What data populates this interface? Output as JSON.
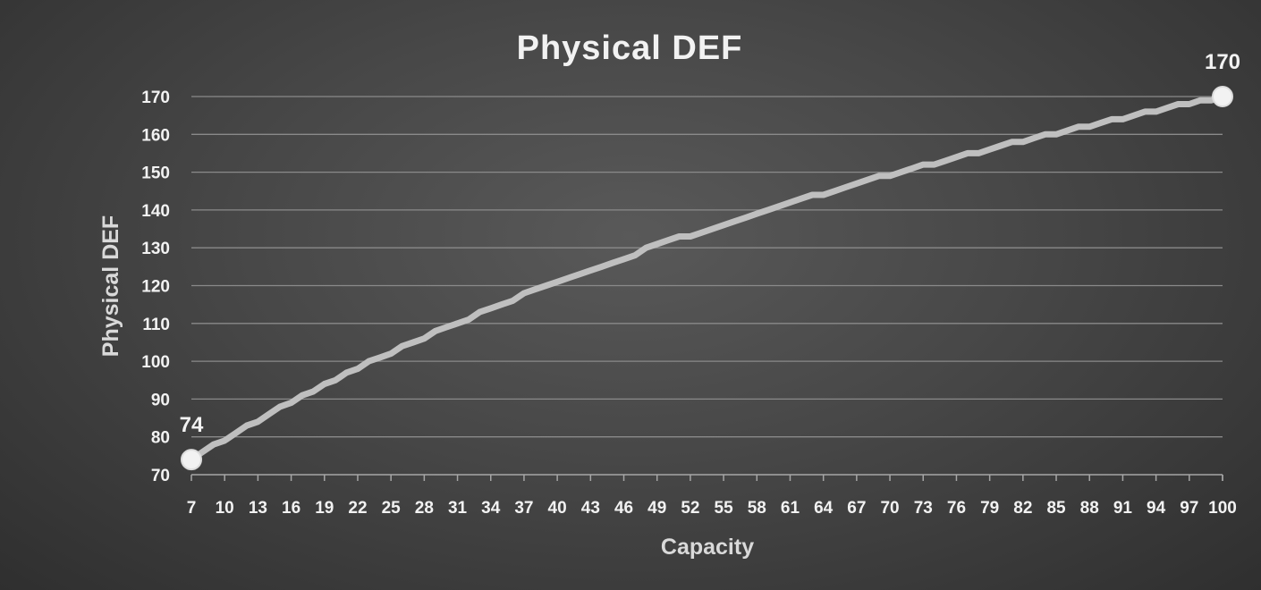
{
  "chart_data": {
    "type": "line",
    "title": "Physical DEF",
    "xlabel": "Capacity",
    "ylabel": "Physical DEF",
    "ylim": [
      70,
      170
    ],
    "yticks": [
      70,
      80,
      90,
      100,
      110,
      120,
      130,
      140,
      150,
      160,
      170
    ],
    "xlim": [
      7,
      100
    ],
    "xticks": [
      7,
      10,
      13,
      16,
      19,
      22,
      25,
      28,
      31,
      34,
      37,
      40,
      43,
      46,
      49,
      52,
      55,
      58,
      61,
      64,
      67,
      70,
      73,
      76,
      79,
      82,
      85,
      88,
      91,
      94,
      97,
      100
    ],
    "grid": true,
    "legend": "none",
    "series": [
      {
        "color": "#bfbfbf",
        "points": [
          [
            7,
            74
          ],
          [
            8,
            76
          ],
          [
            9,
            78
          ],
          [
            10,
            79
          ],
          [
            11,
            81
          ],
          [
            12,
            83
          ],
          [
            13,
            84
          ],
          [
            14,
            86
          ],
          [
            15,
            88
          ],
          [
            16,
            89
          ],
          [
            17,
            91
          ],
          [
            18,
            92
          ],
          [
            19,
            94
          ],
          [
            20,
            95
          ],
          [
            21,
            97
          ],
          [
            22,
            98
          ],
          [
            23,
            100
          ],
          [
            24,
            101
          ],
          [
            25,
            102
          ],
          [
            26,
            104
          ],
          [
            27,
            105
          ],
          [
            28,
            106
          ],
          [
            29,
            108
          ],
          [
            30,
            109
          ],
          [
            31,
            110
          ],
          [
            32,
            111
          ],
          [
            33,
            113
          ],
          [
            34,
            114
          ],
          [
            35,
            115
          ],
          [
            36,
            116
          ],
          [
            37,
            118
          ],
          [
            38,
            119
          ],
          [
            39,
            120
          ],
          [
            40,
            121
          ],
          [
            41,
            122
          ],
          [
            42,
            123
          ],
          [
            43,
            124
          ],
          [
            44,
            125
          ],
          [
            45,
            126
          ],
          [
            46,
            127
          ],
          [
            47,
            128
          ],
          [
            48,
            130
          ],
          [
            49,
            131
          ],
          [
            50,
            132
          ],
          [
            51,
            133
          ],
          [
            52,
            133
          ],
          [
            53,
            134
          ],
          [
            54,
            135
          ],
          [
            55,
            136
          ],
          [
            56,
            137
          ],
          [
            57,
            138
          ],
          [
            58,
            139
          ],
          [
            59,
            140
          ],
          [
            60,
            141
          ],
          [
            61,
            142
          ],
          [
            62,
            143
          ],
          [
            63,
            144
          ],
          [
            64,
            144
          ],
          [
            65,
            145
          ],
          [
            66,
            146
          ],
          [
            67,
            147
          ],
          [
            68,
            148
          ],
          [
            69,
            149
          ],
          [
            70,
            149
          ],
          [
            71,
            150
          ],
          [
            72,
            151
          ],
          [
            73,
            152
          ],
          [
            74,
            152
          ],
          [
            75,
            153
          ],
          [
            76,
            154
          ],
          [
            77,
            155
          ],
          [
            78,
            155
          ],
          [
            79,
            156
          ],
          [
            80,
            157
          ],
          [
            81,
            158
          ],
          [
            82,
            158
          ],
          [
            83,
            159
          ],
          [
            84,
            160
          ],
          [
            85,
            160
          ],
          [
            86,
            161
          ],
          [
            87,
            162
          ],
          [
            88,
            162
          ],
          [
            89,
            163
          ],
          [
            90,
            164
          ],
          [
            91,
            164
          ],
          [
            92,
            165
          ],
          [
            93,
            166
          ],
          [
            94,
            166
          ],
          [
            95,
            167
          ],
          [
            96,
            168
          ],
          [
            97,
            168
          ],
          [
            98,
            169
          ],
          [
            99,
            169
          ],
          [
            100,
            170
          ]
        ]
      }
    ],
    "data_labels": [
      {
        "x": 7,
        "y": 74,
        "text": "74"
      },
      {
        "x": 100,
        "y": 170,
        "text": "170"
      }
    ]
  }
}
